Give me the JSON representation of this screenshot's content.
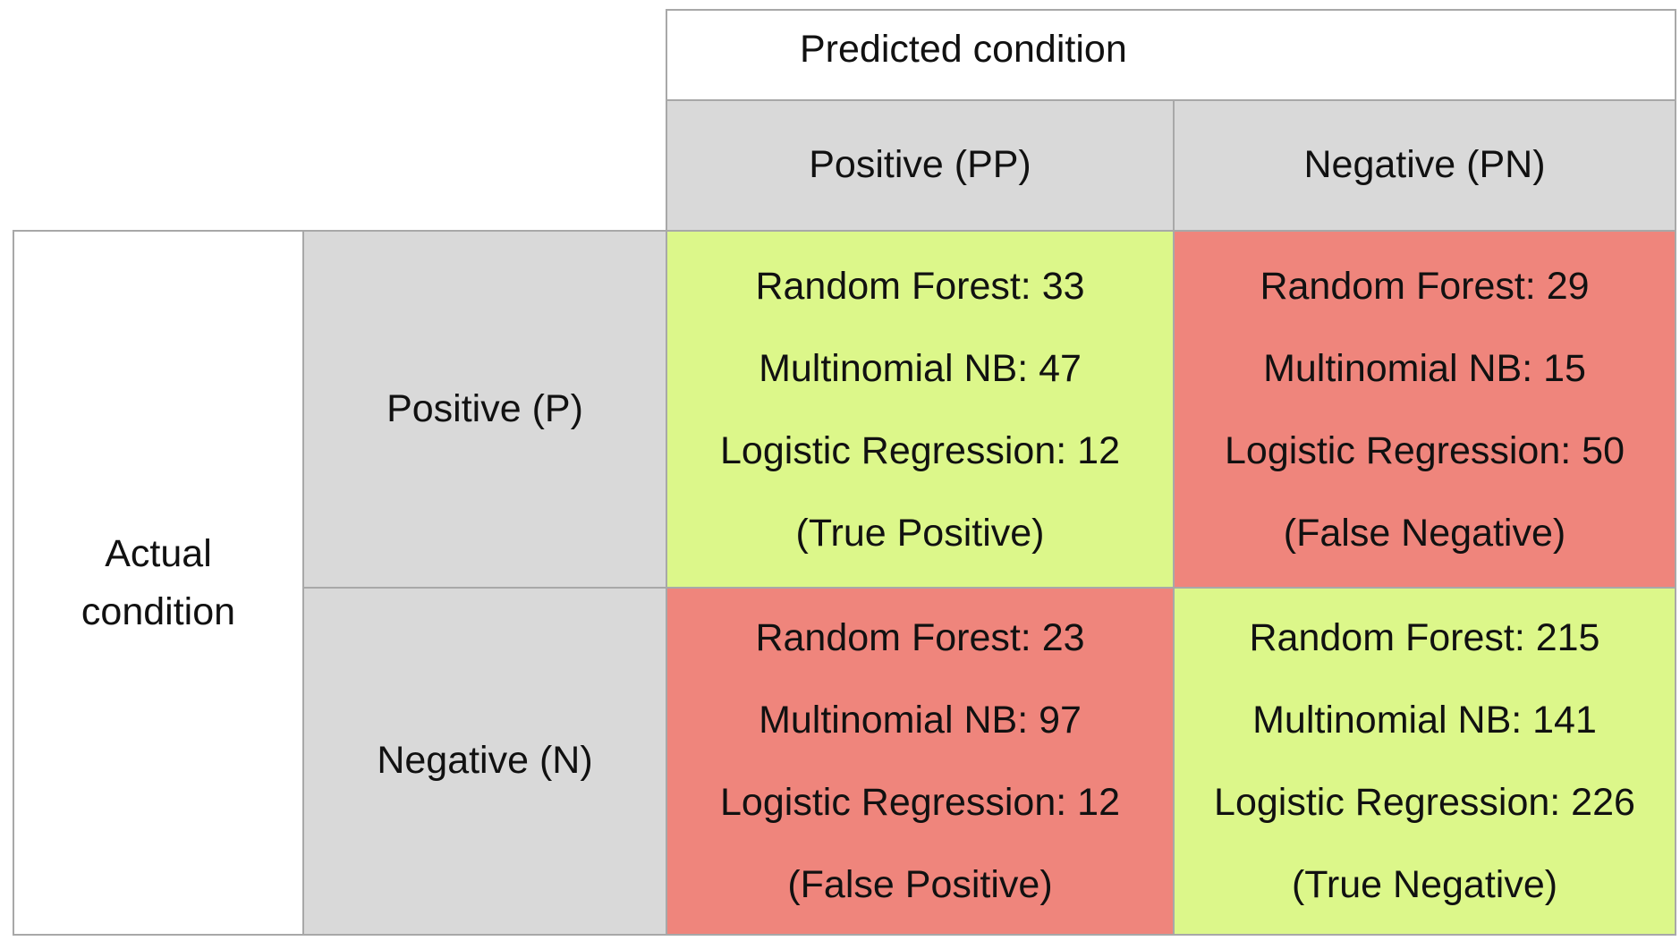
{
  "predicted": {
    "title": "Predicted condition",
    "positive": "Positive (PP)",
    "negative": "Negative (PN)"
  },
  "actual": {
    "title_line1": "Actual",
    "title_line2": "condition",
    "positive": "Positive (P)",
    "negative": "Negative (N)"
  },
  "cells": {
    "true_positive": {
      "random_forest": "Random Forest: 33",
      "multinomial_nb": "Multinomial NB: 47",
      "logistic_regression": "Logistic Regression: 12",
      "label": "(True Positive)"
    },
    "false_negative": {
      "random_forest": "Random Forest: 29",
      "multinomial_nb": "Multinomial NB: 15",
      "logistic_regression": "Logistic Regression: 50",
      "label": "(False Negative)"
    },
    "false_positive": {
      "random_forest": "Random Forest: 23",
      "multinomial_nb": "Multinomial NB: 97",
      "logistic_regression": "Logistic Regression: 12",
      "label": "(False Positive)"
    },
    "true_negative": {
      "random_forest": "Random Forest: 215",
      "multinomial_nb": "Multinomial NB: 141",
      "logistic_regression": "Logistic Regression: 226",
      "label": "(True Negative)"
    }
  },
  "colors": {
    "correct": "#dcf78a",
    "incorrect": "#ef857c",
    "header": "#d9d9d9",
    "border": "#a8a8a8"
  }
}
